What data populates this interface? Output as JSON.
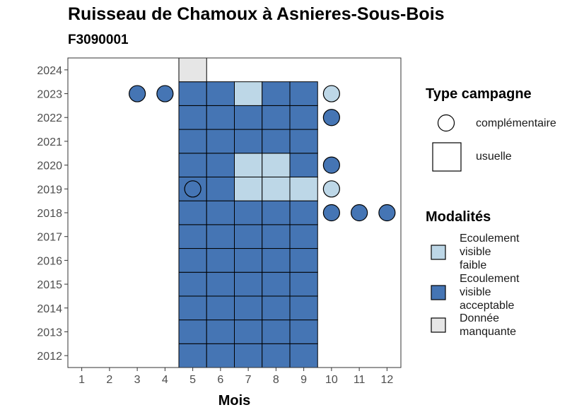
{
  "colors": {
    "faible": "#BDD7E7",
    "acceptable": "#4575B4",
    "manquante": "#E6E6E6",
    "stroke": "#000000"
  },
  "chart_data": {
    "type": "heatmap",
    "title": "Ruisseau de Chamoux à Asnieres-Sous-Bois",
    "subtitle": "F3090001",
    "xlabel": "Mois",
    "ylabel": "",
    "x_ticks": [
      1,
      2,
      3,
      4,
      5,
      6,
      7,
      8,
      9,
      10,
      11,
      12
    ],
    "y_ticks": [
      2012,
      2013,
      2014,
      2015,
      2016,
      2017,
      2018,
      2019,
      2020,
      2021,
      2022,
      2023,
      2024
    ],
    "xlim": [
      0.5,
      12.5
    ],
    "ylim": [
      2011.5,
      2024.5
    ],
    "grid": false,
    "legend_placement": "right",
    "legends": {
      "type_campagne": {
        "title": "Type campagne",
        "items": [
          {
            "shape": "circle",
            "label": "complémentaire"
          },
          {
            "shape": "square",
            "label": "usuelle"
          }
        ]
      },
      "modalites": {
        "title": "Modalités",
        "items": [
          {
            "key": "faible",
            "label": [
              "Ecoulement",
              "visible",
              "faible"
            ]
          },
          {
            "key": "acceptable",
            "label": [
              "Ecoulement",
              "visible",
              "acceptable"
            ]
          },
          {
            "key": "manquante",
            "label": [
              "Donnée",
              "manquante"
            ]
          }
        ]
      }
    },
    "usuelle": [
      {
        "year": 2012,
        "months": [
          5,
          6,
          7,
          8,
          9
        ],
        "values": [
          "acceptable",
          "acceptable",
          "acceptable",
          "acceptable",
          "acceptable"
        ]
      },
      {
        "year": 2013,
        "months": [
          5,
          6,
          7,
          8,
          9
        ],
        "values": [
          "acceptable",
          "acceptable",
          "acceptable",
          "acceptable",
          "acceptable"
        ]
      },
      {
        "year": 2014,
        "months": [
          5,
          6,
          7,
          8,
          9
        ],
        "values": [
          "acceptable",
          "acceptable",
          "acceptable",
          "acceptable",
          "acceptable"
        ]
      },
      {
        "year": 2015,
        "months": [
          5,
          6,
          7,
          8,
          9
        ],
        "values": [
          "acceptable",
          "acceptable",
          "acceptable",
          "acceptable",
          "acceptable"
        ]
      },
      {
        "year": 2016,
        "months": [
          5,
          6,
          7,
          8,
          9
        ],
        "values": [
          "acceptable",
          "acceptable",
          "acceptable",
          "acceptable",
          "acceptable"
        ]
      },
      {
        "year": 2017,
        "months": [
          5,
          6,
          7,
          8,
          9
        ],
        "values": [
          "acceptable",
          "acceptable",
          "acceptable",
          "acceptable",
          "acceptable"
        ]
      },
      {
        "year": 2018,
        "months": [
          5,
          6,
          7,
          8,
          9
        ],
        "values": [
          "acceptable",
          "acceptable",
          "acceptable",
          "acceptable",
          "acceptable"
        ]
      },
      {
        "year": 2019,
        "months": [
          5,
          6,
          7,
          8,
          9
        ],
        "values": [
          "acceptable",
          "acceptable",
          "faible",
          "faible",
          "faible"
        ]
      },
      {
        "year": 2020,
        "months": [
          5,
          6,
          7,
          8,
          9
        ],
        "values": [
          "acceptable",
          "acceptable",
          "faible",
          "faible",
          "acceptable"
        ]
      },
      {
        "year": 2021,
        "months": [
          5,
          6,
          7,
          8,
          9
        ],
        "values": [
          "acceptable",
          "acceptable",
          "acceptable",
          "acceptable",
          "acceptable"
        ]
      },
      {
        "year": 2022,
        "months": [
          5,
          6,
          7,
          8,
          9
        ],
        "values": [
          "acceptable",
          "acceptable",
          "acceptable",
          "acceptable",
          "acceptable"
        ]
      },
      {
        "year": 2023,
        "months": [
          5,
          6,
          7,
          8,
          9
        ],
        "values": [
          "acceptable",
          "acceptable",
          "faible",
          "acceptable",
          "acceptable"
        ]
      },
      {
        "year": 2024,
        "months": [
          5
        ],
        "values": [
          "manquante"
        ]
      }
    ],
    "complementaire": [
      {
        "year": 2023,
        "month": 3,
        "value": "acceptable"
      },
      {
        "year": 2023,
        "month": 4,
        "value": "acceptable"
      },
      {
        "year": 2023,
        "month": 10,
        "value": "faible"
      },
      {
        "year": 2022,
        "month": 10,
        "value": "acceptable"
      },
      {
        "year": 2020,
        "month": 10,
        "value": "acceptable"
      },
      {
        "year": 2019,
        "month": 5,
        "value": "acceptable"
      },
      {
        "year": 2019,
        "month": 10,
        "value": "faible"
      },
      {
        "year": 2018,
        "month": 10,
        "value": "acceptable"
      },
      {
        "year": 2018,
        "month": 11,
        "value": "acceptable"
      },
      {
        "year": 2018,
        "month": 12,
        "value": "acceptable"
      }
    ]
  }
}
